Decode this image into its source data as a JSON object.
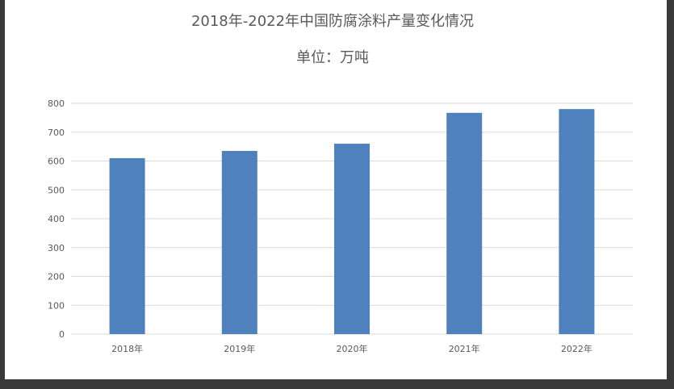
{
  "chart_data": {
    "type": "bar",
    "title": "2018年-2022年中国防腐涂料产量变化情况",
    "subtitle": "单位：万吨",
    "categories": [
      "2018年",
      "2019年",
      "2020年",
      "2021年",
      "2022年"
    ],
    "values": [
      610,
      635,
      660,
      767,
      780
    ],
    "ylim": [
      0,
      800
    ],
    "yticks": [
      0,
      100,
      200,
      300,
      400,
      500,
      600,
      700,
      800
    ],
    "grid": true,
    "bar_color": "#4f81bd",
    "xlabel": "",
    "ylabel": ""
  }
}
